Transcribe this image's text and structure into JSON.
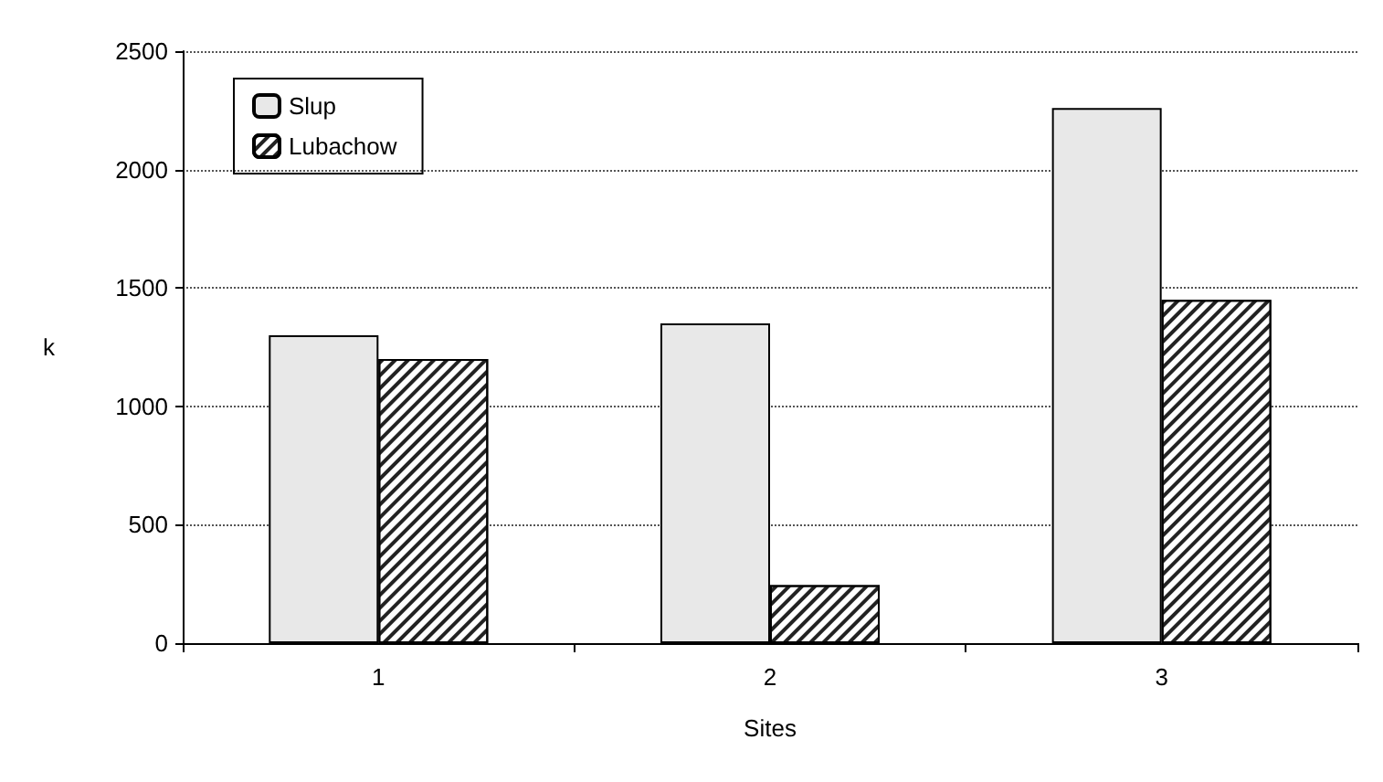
{
  "chart_data": {
    "type": "bar",
    "xlabel": "Sites",
    "ylabel": "k",
    "categories": [
      "1",
      "2",
      "3"
    ],
    "series": [
      {
        "name": "Slup",
        "color": "#e8e8e8",
        "values": [
          1300,
          1350,
          2260
        ]
      },
      {
        "name": "Lubachow",
        "color": "#ffffff",
        "values": [
          1200,
          245,
          1450
        ]
      }
    ],
    "ylim": [
      0,
      2500
    ],
    "yticks": [
      0,
      500,
      1000,
      1500,
      2000,
      2500
    ],
    "grid": "y",
    "legend": "top left"
  }
}
